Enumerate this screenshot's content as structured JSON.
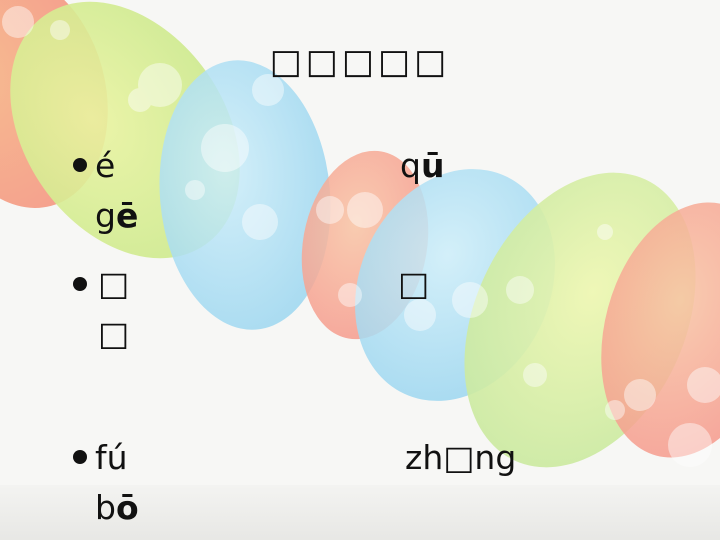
{
  "slide": {
    "title": "□□□□□",
    "rows": [
      {
        "left_line1": "é",
        "left_line2_prefix": "g",
        "left_line2_bold": "ē",
        "right_prefix": "q",
        "right_bold": "ū"
      },
      {
        "left_line1": "□",
        "left_line2": "□",
        "right": "□"
      },
      {
        "left_line1": "fú",
        "left_line2_prefix": "b",
        "left_line2_bold": "ō",
        "right": "zh□ng"
      }
    ]
  },
  "colors": {
    "accent_yellow_green": "#dbef8a",
    "accent_blue": "#a8dcf2",
    "accent_coral": "#f7a593",
    "accent_orange": "#f9c98a"
  }
}
